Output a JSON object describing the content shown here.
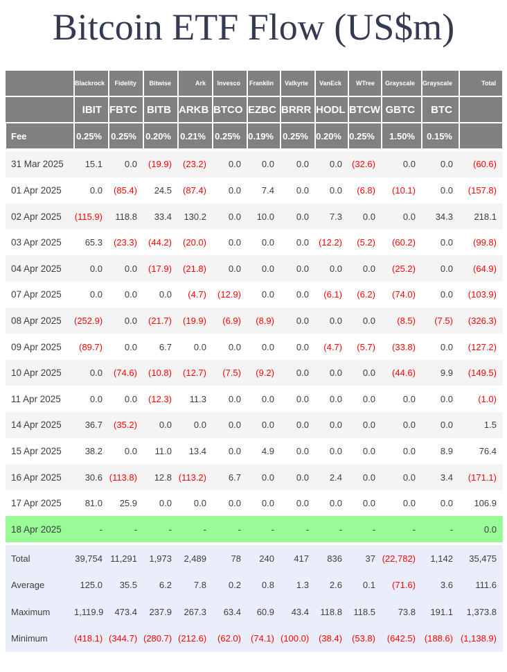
{
  "title": "Bitcoin ETF Flow (US$m)",
  "colors": {
    "title_color": "#343a50",
    "header_bg": "#808080",
    "stripe_bg": "#f4f4f4",
    "highlight_bg": "#98fb98",
    "summary_bg": "#e9eefa",
    "negative": "#ff0000",
    "text": "#3d3d3d"
  },
  "chart_data": {
    "type": "table",
    "title": "Bitcoin ETF Flow (US$m)",
    "fee_label": "Fee",
    "total_label": "Total",
    "columns": [
      {
        "issuer": "Blackrock",
        "ticker": "IBIT",
        "fee": "0.25%"
      },
      {
        "issuer": "Fidelity",
        "ticker": "FBTC",
        "fee": "0.25%"
      },
      {
        "issuer": "Bitwise",
        "ticker": "BITB",
        "fee": "0.20%"
      },
      {
        "issuer": "Ark",
        "ticker": "ARKB",
        "fee": "0.21%"
      },
      {
        "issuer": "Invesco",
        "ticker": "BTCO",
        "fee": "0.25%"
      },
      {
        "issuer": "Franklin",
        "ticker": "EZBC",
        "fee": "0.19%"
      },
      {
        "issuer": "Valkyrie",
        "ticker": "BRRR",
        "fee": "0.25%"
      },
      {
        "issuer": "VanEck",
        "ticker": "HODL",
        "fee": "0.20%"
      },
      {
        "issuer": "WTree",
        "ticker": "BTCW",
        "fee": "0.25%"
      },
      {
        "issuer": "Grayscale",
        "ticker": "GBTC",
        "fee": "1.50%"
      },
      {
        "issuer": "Grayscale",
        "ticker": "BTC",
        "fee": "0.15%"
      }
    ],
    "rows": [
      {
        "date": "31 Mar 2025",
        "values": [
          "15.1",
          "0.0",
          "(19.9)",
          "(23.2)",
          "0.0",
          "0.0",
          "0.0",
          "0.0",
          "(32.6)",
          "0.0",
          "0.0",
          "(60.6)"
        ]
      },
      {
        "date": "01 Apr 2025",
        "values": [
          "0.0",
          "(85.4)",
          "24.5",
          "(87.4)",
          "0.0",
          "7.4",
          "0.0",
          "0.0",
          "(6.8)",
          "(10.1)",
          "0.0",
          "(157.8)"
        ]
      },
      {
        "date": "02 Apr 2025",
        "values": [
          "(115.9)",
          "118.8",
          "33.4",
          "130.2",
          "0.0",
          "10.0",
          "0.0",
          "7.3",
          "0.0",
          "0.0",
          "34.3",
          "218.1"
        ]
      },
      {
        "date": "03 Apr 2025",
        "values": [
          "65.3",
          "(23.3)",
          "(44.2)",
          "(20.0)",
          "0.0",
          "0.0",
          "0.0",
          "(12.2)",
          "(5.2)",
          "(60.2)",
          "0.0",
          "(99.8)"
        ]
      },
      {
        "date": "04 Apr 2025",
        "values": [
          "0.0",
          "0.0",
          "(17.9)",
          "(21.8)",
          "0.0",
          "0.0",
          "0.0",
          "0.0",
          "0.0",
          "(25.2)",
          "0.0",
          "(64.9)"
        ]
      },
      {
        "date": "07 Apr 2025",
        "values": [
          "0.0",
          "0.0",
          "0.0",
          "(4.7)",
          "(12.9)",
          "0.0",
          "0.0",
          "(6.1)",
          "(6.2)",
          "(74.0)",
          "0.0",
          "(103.9)"
        ]
      },
      {
        "date": "08 Apr 2025",
        "values": [
          "(252.9)",
          "0.0",
          "(21.7)",
          "(19.9)",
          "(6.9)",
          "(8.9)",
          "0.0",
          "0.0",
          "0.0",
          "(8.5)",
          "(7.5)",
          "(326.3)"
        ]
      },
      {
        "date": "09 Apr 2025",
        "values": [
          "(89.7)",
          "0.0",
          "6.7",
          "0.0",
          "0.0",
          "0.0",
          "0.0",
          "(4.7)",
          "(5.7)",
          "(33.8)",
          "0.0",
          "(127.2)"
        ]
      },
      {
        "date": "10 Apr 2025",
        "values": [
          "0.0",
          "(74.6)",
          "(10.8)",
          "(12.7)",
          "(7.5)",
          "(9.2)",
          "0.0",
          "0.0",
          "0.0",
          "(44.6)",
          "9.9",
          "(149.5)"
        ]
      },
      {
        "date": "11 Apr 2025",
        "values": [
          "0.0",
          "0.0",
          "(12.3)",
          "11.3",
          "0.0",
          "0.0",
          "0.0",
          "0.0",
          "0.0",
          "0.0",
          "0.0",
          "(1.0)"
        ]
      },
      {
        "date": "14 Apr 2025",
        "values": [
          "36.7",
          "(35.2)",
          "0.0",
          "0.0",
          "0.0",
          "0.0",
          "0.0",
          "0.0",
          "0.0",
          "0.0",
          "0.0",
          "1.5"
        ]
      },
      {
        "date": "15 Apr 2025",
        "values": [
          "38.2",
          "0.0",
          "11.0",
          "13.4",
          "0.0",
          "4.9",
          "0.0",
          "0.0",
          "0.0",
          "0.0",
          "8.9",
          "76.4"
        ]
      },
      {
        "date": "16 Apr 2025",
        "values": [
          "30.6",
          "(113.8)",
          "12.8",
          "(113.2)",
          "6.7",
          "0.0",
          "0.0",
          "2.4",
          "0.0",
          "0.0",
          "3.4",
          "(171.1)"
        ]
      },
      {
        "date": "17 Apr 2025",
        "values": [
          "81.0",
          "25.9",
          "0.0",
          "0.0",
          "0.0",
          "0.0",
          "0.0",
          "0.0",
          "0.0",
          "0.0",
          "0.0",
          "106.9"
        ]
      },
      {
        "date": "18 Apr 2025",
        "highlight": true,
        "values": [
          "-",
          "-",
          "-",
          "-",
          "-",
          "-",
          "-",
          "-",
          "-",
          "-",
          "-",
          "0.0"
        ]
      }
    ],
    "summary": [
      {
        "label": "Total",
        "values": [
          "39,754",
          "11,291",
          "1,973",
          "2,489",
          "78",
          "240",
          "417",
          "836",
          "37",
          "(22,782)",
          "1,142",
          "35,475"
        ]
      },
      {
        "label": "Average",
        "values": [
          "125.0",
          "35.5",
          "6.2",
          "7.8",
          "0.2",
          "0.8",
          "1.3",
          "2.6",
          "0.1",
          "(71.6)",
          "3.6",
          "111.6"
        ]
      },
      {
        "label": "Maximum",
        "values": [
          "1,119.9",
          "473.4",
          "237.9",
          "267.3",
          "63.4",
          "60.9",
          "43.4",
          "118.8",
          "118.5",
          "73.8",
          "191.1",
          "1,373.8"
        ]
      },
      {
        "label": "Minimum",
        "values": [
          "(418.1)",
          "(344.7)",
          "(280.7)",
          "(212.6)",
          "(62.0)",
          "(74.1)",
          "(100.0)",
          "(38.4)",
          "(53.8)",
          "(642.5)",
          "(188.6)",
          "(1,138.9)"
        ]
      }
    ]
  }
}
